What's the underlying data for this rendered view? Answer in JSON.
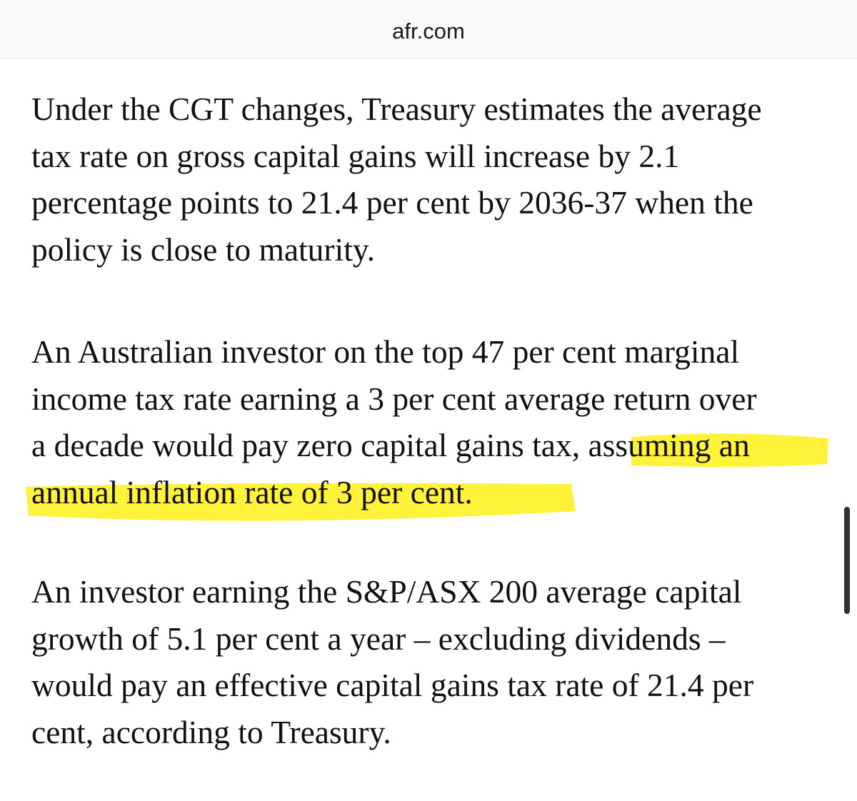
{
  "browser": {
    "url": "afr.com"
  },
  "article": {
    "paragraphs": [
      {
        "lines": [
          "Under the CGT changes, Treasury estimates the average",
          "tax rate on gross capital gains will increase by 2.1",
          "percentage points to 21.4 per cent by 2036-37 when the",
          "policy is close to maturity."
        ]
      },
      {
        "lines": [
          "An Australian investor on the top 47 per cent marginal",
          "income tax rate earning a 3 per cent average return over"
        ],
        "line3_plain": "a decade would pay zero capital gains tax, a",
        "line3_highlighted": "ssuming an",
        "line4_highlighted": "annual inflation rate of 3 per cent."
      },
      {
        "lines": [
          "An investor earning the S&P/ASX 200 average capital",
          "growth of 5.1 per cent a year – excluding dividends –",
          "would pay an effective capital gains tax rate of 21.4 per",
          "cent, according to Treasury."
        ]
      }
    ]
  },
  "colors": {
    "highlight": "#fff23a",
    "text": "#111111"
  }
}
